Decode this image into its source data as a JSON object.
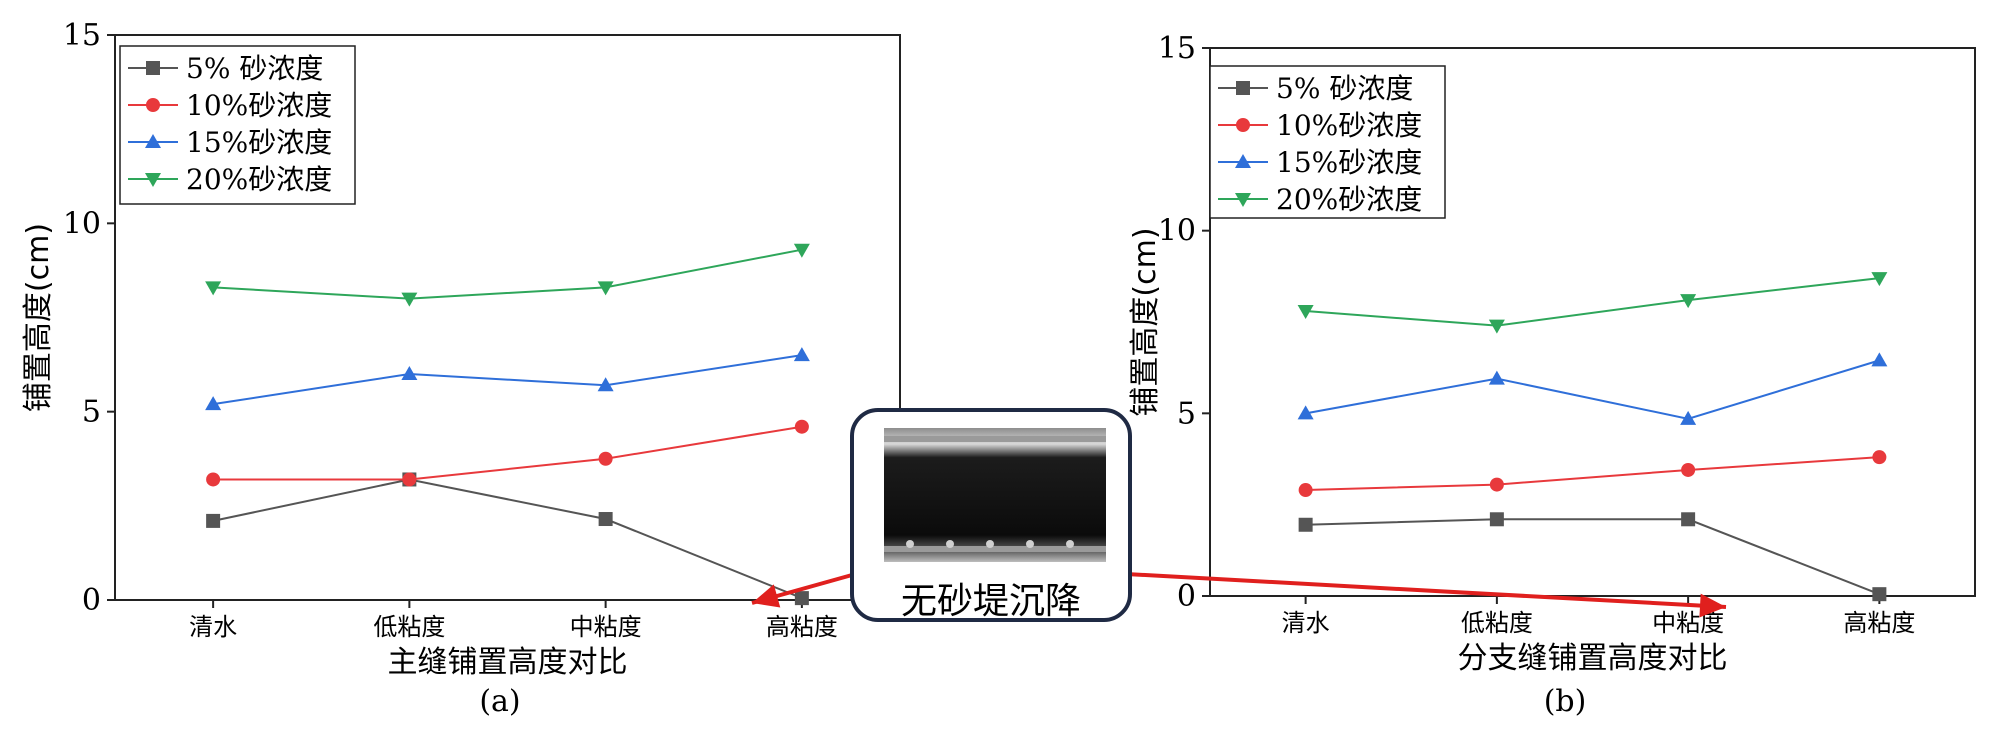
{
  "chart_data": [
    {
      "id": "a",
      "type": "line",
      "title": "",
      "xlabel": "主缝铺置高度对比",
      "ylabel": "铺置高度(cm)",
      "ylim": [
        0,
        15
      ],
      "yticks": [
        0,
        5,
        10,
        15
      ],
      "categories": [
        "清水",
        "低粘度",
        "中粘度",
        "高粘度"
      ],
      "caption": "(a)",
      "legend_position": "top-left",
      "series": [
        {
          "name": "5% 砂浓度",
          "color": "#555555",
          "marker": "square",
          "values": [
            2.1,
            3.2,
            2.15,
            0.05
          ]
        },
        {
          "name": "10%砂浓度",
          "color": "#e8393c",
          "marker": "circle",
          "values": [
            3.2,
            3.2,
            3.75,
            4.6
          ]
        },
        {
          "name": "15%砂浓度",
          "color": "#2f6fd9",
          "marker": "triangle-up",
          "values": [
            5.2,
            6.0,
            5.7,
            6.5
          ]
        },
        {
          "name": "20%砂浓度",
          "color": "#2ea65a",
          "marker": "triangle-down",
          "values": [
            8.3,
            8.0,
            8.3,
            9.3
          ]
        }
      ]
    },
    {
      "id": "b",
      "type": "line",
      "title": "",
      "xlabel": "分支缝铺置高度对比",
      "ylabel": "铺置高度(cm)",
      "ylim": [
        0,
        15
      ],
      "yticks": [
        0,
        5,
        10,
        15
      ],
      "categories": [
        "清水",
        "低粘度",
        "中粘度",
        "高粘度"
      ],
      "caption": "(b)",
      "legend_position": "top-left",
      "series": [
        {
          "name": "5% 砂浓度",
          "color": "#555555",
          "marker": "square",
          "values": [
            1.95,
            2.1,
            2.1,
            0.05
          ]
        },
        {
          "name": "10%砂浓度",
          "color": "#e8393c",
          "marker": "circle",
          "values": [
            2.9,
            3.05,
            3.45,
            3.8
          ]
        },
        {
          "name": "15%砂浓度",
          "color": "#2f6fd9",
          "marker": "triangle-up",
          "values": [
            5.0,
            5.95,
            4.85,
            6.45
          ]
        },
        {
          "name": "20%砂浓度",
          "color": "#2ea65a",
          "marker": "triangle-down",
          "values": [
            7.8,
            7.4,
            8.1,
            8.7
          ]
        }
      ]
    }
  ],
  "annotation": {
    "label": "无砂堤沉降",
    "arrow_color": "#e0201e"
  }
}
